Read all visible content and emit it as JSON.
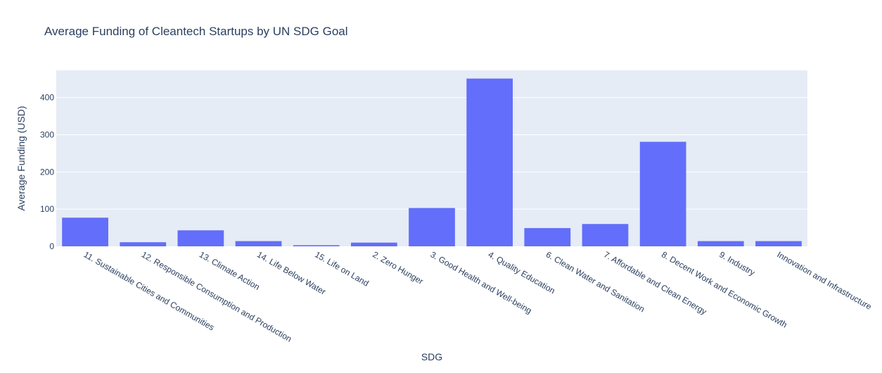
{
  "chart_data": {
    "type": "bar",
    "title": "Average Funding of Cleantech Startups by UN SDG Goal",
    "xlabel": "SDG",
    "ylabel": "Average Funding (USD)",
    "categories": [
      "11. Sustainable Cities and Communities",
      "12. Responsible Consumption and Production",
      "13. Climate Action",
      "14. Life Below Water",
      "15. Life on Land",
      "2. Zero Hunger",
      "3. Good Health and Well-being",
      "4. Quality Education",
      "6. Clean Water and Sanitation",
      "7. Affordable and Clean Energy",
      "8. Decent Work and Economic Growth",
      "9. Industry",
      "Innovation and Infrastructure"
    ],
    "values": [
      77,
      11,
      43,
      14,
      3,
      10,
      103,
      451,
      49,
      60,
      281,
      14,
      14
    ],
    "ylim": [
      0,
      473
    ],
    "yticks": [
      0,
      100,
      200,
      300,
      400
    ],
    "grid": true,
    "colors": {
      "bar": "#636efa",
      "plot_bg": "#e5ecf6",
      "grid": "#ffffff",
      "text": "#2a3f5f"
    }
  }
}
